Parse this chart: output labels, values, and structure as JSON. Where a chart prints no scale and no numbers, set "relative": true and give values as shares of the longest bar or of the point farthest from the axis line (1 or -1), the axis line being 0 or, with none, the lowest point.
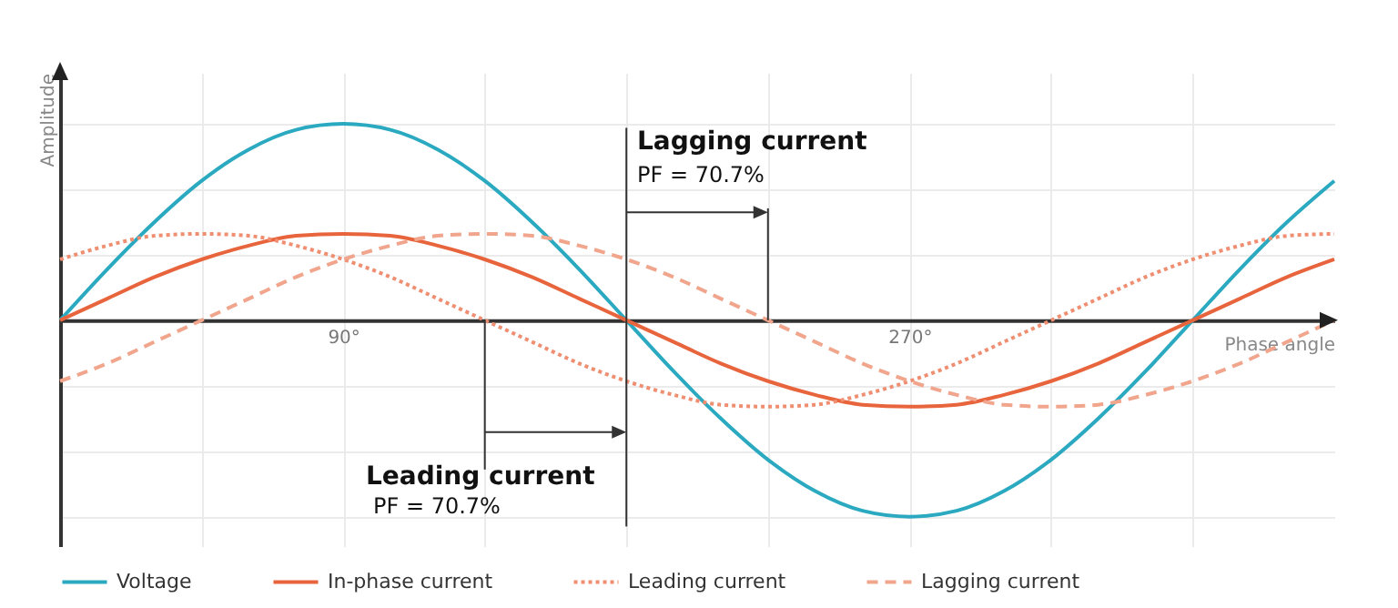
{
  "chart_data": {
    "type": "line",
    "relative": true,
    "xlabel": "Phase angle",
    "ylabel": "Amplitude",
    "x": [
      0,
      15,
      30,
      45,
      60,
      75,
      90,
      105,
      120,
      135,
      150,
      165,
      180,
      195,
      210,
      225,
      240,
      255,
      270,
      285,
      300,
      315,
      330,
      345,
      360,
      375,
      390,
      405
    ],
    "xlim": [
      0,
      405
    ],
    "xticks": [
      {
        "value": 45,
        "label": null
      },
      {
        "value": 90,
        "label": "90°"
      },
      {
        "value": 135,
        "label": null
      },
      {
        "value": 180,
        "label": null
      },
      {
        "value": 225,
        "label": null
      },
      {
        "value": 270,
        "label": "270°"
      },
      {
        "value": 315,
        "label": null
      },
      {
        "value": 360,
        "label": null
      }
    ],
    "grid": true,
    "legend": "bottom",
    "series": [
      {
        "name": "Voltage",
        "color": "#2aa9c0",
        "line_style": "solid",
        "values": [
          0,
          0.26,
          0.5,
          0.71,
          0.87,
          0.97,
          1,
          0.97,
          0.87,
          0.71,
          0.5,
          0.26,
          0,
          -0.26,
          -0.5,
          -0.71,
          -0.87,
          -0.97,
          -1,
          -0.97,
          -0.87,
          -0.71,
          -0.5,
          -0.26,
          0,
          0.26,
          0.5,
          0.71
        ]
      },
      {
        "name": "In-phase current",
        "color": "#e8643c",
        "line_style": "solid",
        "values": [
          0,
          0.11,
          0.22,
          0.31,
          0.38,
          0.43,
          0.44,
          0.43,
          0.38,
          0.31,
          0.22,
          0.11,
          0,
          -0.11,
          -0.22,
          -0.31,
          -0.38,
          -0.43,
          -0.44,
          -0.43,
          -0.38,
          -0.31,
          -0.22,
          -0.11,
          0,
          0.11,
          0.22,
          0.31
        ]
      },
      {
        "name": "Leading current",
        "color": "#ef8e70",
        "line_style": "dotted",
        "values": [
          0.31,
          0.38,
          0.43,
          0.44,
          0.43,
          0.38,
          0.31,
          0.22,
          0.11,
          0,
          -0.11,
          -0.22,
          -0.31,
          -0.38,
          -0.43,
          -0.44,
          -0.43,
          -0.38,
          -0.31,
          -0.22,
          -0.11,
          0,
          0.11,
          0.22,
          0.31,
          0.38,
          0.43,
          0.44
        ]
      },
      {
        "name": "Lagging current",
        "color": "#f0a58c",
        "line_style": "dashed",
        "values": [
          -0.31,
          -0.22,
          -0.11,
          0,
          0.11,
          0.22,
          0.31,
          0.38,
          0.43,
          0.44,
          0.43,
          0.38,
          0.31,
          0.22,
          0.11,
          0,
          -0.11,
          -0.22,
          -0.31,
          -0.38,
          -0.43,
          -0.44,
          -0.43,
          -0.38,
          -0.31,
          -0.22,
          -0.11,
          0
        ]
      }
    ],
    "annotations": [
      "Lagging current",
      "PF = 70.7%",
      "Leading current",
      "PF = 70.7%"
    ]
  }
}
